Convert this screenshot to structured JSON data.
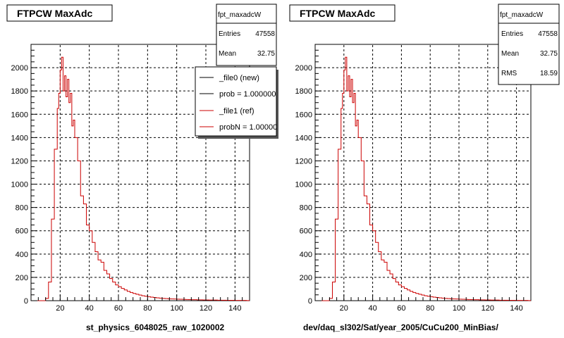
{
  "chart_data": [
    {
      "type": "histogram",
      "title": "FTPCW MaxAdc",
      "xlabel": "st_physics_6048025_raw_1020002",
      "ylabel": "",
      "xlim": [
        0,
        150
      ],
      "ylim": [
        0,
        2200
      ],
      "x_ticks": [
        "20",
        "40",
        "60",
        "80",
        "100",
        "120",
        "140"
      ],
      "y_ticks": [
        "0",
        "200",
        "400",
        "600",
        "800",
        "1000",
        "1200",
        "1400",
        "1600",
        "1800",
        "2000"
      ],
      "grid": true,
      "stats": {
        "name": "fpt_maxadcW",
        "rows": [
          {
            "label": "Entries",
            "value": "47558"
          },
          {
            "label": "Mean",
            "value": "32.75"
          },
          {
            "label": "RMS",
            "value": "18.59"
          }
        ]
      },
      "legend": {
        "placement": "top-right",
        "entries": [
          {
            "label": "_file0 (new)",
            "color": "#000000"
          },
          {
            "label": "prob = 1.000000",
            "color": "#000000"
          },
          {
            "label": "_file1 (ref)",
            "color": "#cc0000"
          },
          {
            "label": "probN = 1.000000",
            "color": "#cc0000"
          }
        ]
      },
      "series": [
        {
          "color": "#cc0000",
          "x": [
            0,
            2,
            4,
            6,
            8,
            10,
            12,
            14,
            16,
            18,
            19,
            20,
            21,
            22,
            23,
            24,
            25,
            26,
            27,
            28,
            29,
            30,
            32,
            34,
            36,
            38,
            40,
            42,
            44,
            46,
            48,
            50,
            52,
            54,
            56,
            58,
            60,
            62,
            64,
            66,
            68,
            70,
            72,
            74,
            76,
            78,
            80,
            82,
            84,
            86,
            88,
            90,
            92,
            94,
            96,
            98,
            100,
            102,
            104,
            106,
            108,
            110,
            112,
            114,
            116,
            118,
            120,
            122,
            124,
            126,
            128,
            130,
            132,
            134,
            136,
            138,
            140,
            142,
            144,
            146,
            148,
            150
          ],
          "values": [
            0,
            0,
            0,
            0,
            0,
            20,
            160,
            700,
            1300,
            1650,
            1780,
            1980,
            2090,
            1800,
            1930,
            1750,
            1900,
            1700,
            1780,
            1500,
            1550,
            1400,
            1200,
            900,
            830,
            650,
            600,
            500,
            420,
            350,
            330,
            260,
            230,
            190,
            160,
            135,
            120,
            105,
            92,
            80,
            70,
            62,
            55,
            48,
            42,
            38,
            34,
            30,
            27,
            24,
            22,
            20,
            18,
            16,
            15,
            14,
            13,
            12,
            11,
            10,
            9,
            8,
            8,
            7,
            7,
            6,
            6,
            5,
            5,
            5,
            4,
            4,
            4,
            3,
            3,
            3,
            2,
            2,
            2,
            2,
            1
          ]
        }
      ]
    },
    {
      "type": "histogram",
      "title": "FTPCW MaxAdc",
      "xlabel": "dev/daq_sl302/Sat/year_2005/CuCu200_MinBias/",
      "ylabel": "",
      "xlim": [
        0,
        150
      ],
      "ylim": [
        0,
        2200
      ],
      "x_ticks": [
        "20",
        "40",
        "60",
        "80",
        "100",
        "120",
        "140"
      ],
      "y_ticks": [
        "0",
        "200",
        "400",
        "600",
        "800",
        "1000",
        "1200",
        "1400",
        "1600",
        "1800",
        "2000"
      ],
      "grid": true,
      "stats": {
        "name": "fpt_maxadcW",
        "rows": [
          {
            "label": "Entries",
            "value": "47558"
          },
          {
            "label": "Mean",
            "value": "32.75"
          },
          {
            "label": "RMS",
            "value": "18.59"
          }
        ]
      },
      "series": [
        {
          "color": "#cc0000",
          "x": [
            0,
            2,
            4,
            6,
            8,
            10,
            12,
            14,
            16,
            18,
            19,
            20,
            21,
            22,
            23,
            24,
            25,
            26,
            27,
            28,
            29,
            30,
            32,
            34,
            36,
            38,
            40,
            42,
            44,
            46,
            48,
            50,
            52,
            54,
            56,
            58,
            60,
            62,
            64,
            66,
            68,
            70,
            72,
            74,
            76,
            78,
            80,
            82,
            84,
            86,
            88,
            90,
            92,
            94,
            96,
            98,
            100,
            102,
            104,
            106,
            108,
            110,
            112,
            114,
            116,
            118,
            120,
            122,
            124,
            126,
            128,
            130,
            132,
            134,
            136,
            138,
            140,
            142,
            144,
            146,
            148,
            150
          ],
          "values": [
            0,
            0,
            0,
            0,
            0,
            20,
            160,
            700,
            1300,
            1650,
            1780,
            1980,
            2090,
            1800,
            1930,
            1750,
            1900,
            1700,
            1780,
            1500,
            1550,
            1400,
            1200,
            900,
            830,
            650,
            600,
            500,
            420,
            350,
            330,
            260,
            230,
            190,
            160,
            135,
            120,
            105,
            92,
            80,
            70,
            62,
            55,
            48,
            42,
            38,
            34,
            30,
            27,
            24,
            22,
            20,
            18,
            16,
            15,
            14,
            13,
            12,
            11,
            10,
            9,
            8,
            8,
            7,
            7,
            6,
            6,
            5,
            5,
            5,
            4,
            4,
            4,
            3,
            3,
            3,
            2,
            2,
            2,
            2,
            1
          ]
        }
      ]
    }
  ]
}
